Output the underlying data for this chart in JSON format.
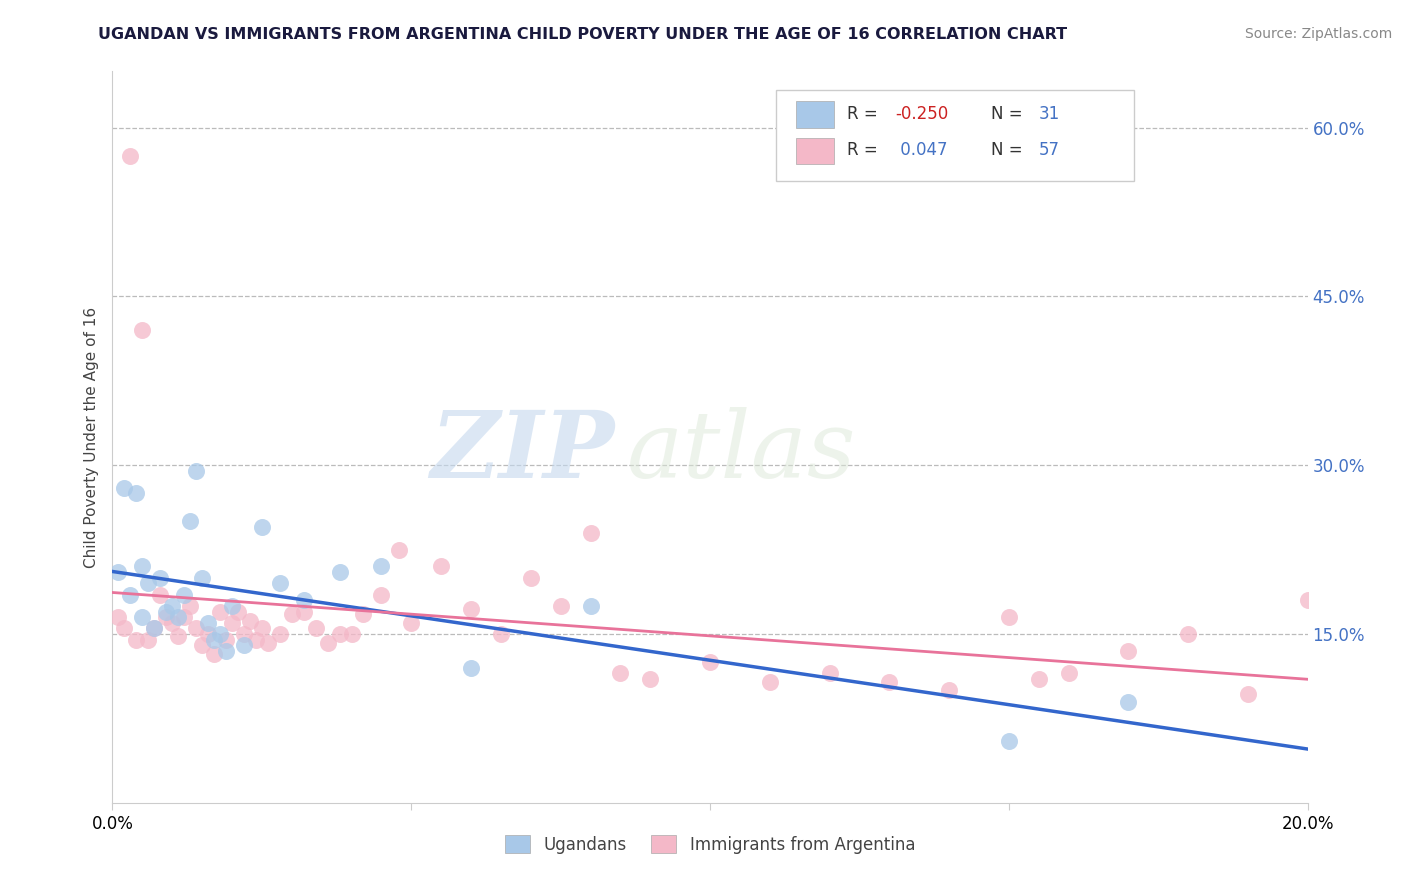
{
  "title": "UGANDAN VS IMMIGRANTS FROM ARGENTINA CHILD POVERTY UNDER THE AGE OF 16 CORRELATION CHART",
  "source": "Source: ZipAtlas.com",
  "ylabel": "Child Poverty Under the Age of 16",
  "xlim": [
    0.0,
    0.2
  ],
  "ylim": [
    0.0,
    0.65
  ],
  "xtick_vals": [
    0.0,
    0.05,
    0.1,
    0.15,
    0.2
  ],
  "xtick_labels": [
    "0.0%",
    "",
    "",
    "",
    "20.0%"
  ],
  "yticks_right": [
    0.15,
    0.3,
    0.45,
    0.6
  ],
  "ytick_labels_right": [
    "15.0%",
    "30.0%",
    "45.0%",
    "60.0%"
  ],
  "blue_color": "#a8c8e8",
  "pink_color": "#f4b8c8",
  "blue_line_color": "#3366cc",
  "pink_line_color": "#e8739a",
  "axis_color": "#4472c4",
  "watermark_zip": "ZIP",
  "watermark_atlas": "atlas",
  "ugandans_x": [
    0.001,
    0.002,
    0.003,
    0.004,
    0.005,
    0.005,
    0.006,
    0.007,
    0.008,
    0.009,
    0.01,
    0.011,
    0.012,
    0.013,
    0.014,
    0.015,
    0.016,
    0.017,
    0.018,
    0.019,
    0.02,
    0.022,
    0.025,
    0.028,
    0.032,
    0.038,
    0.045,
    0.06,
    0.08,
    0.15,
    0.17
  ],
  "ugandans_y": [
    0.205,
    0.28,
    0.185,
    0.275,
    0.21,
    0.165,
    0.195,
    0.155,
    0.2,
    0.17,
    0.175,
    0.165,
    0.185,
    0.25,
    0.295,
    0.2,
    0.16,
    0.145,
    0.15,
    0.135,
    0.175,
    0.14,
    0.245,
    0.195,
    0.18,
    0.205,
    0.21,
    0.12,
    0.175,
    0.055,
    0.09
  ],
  "argentina_x": [
    0.001,
    0.002,
    0.003,
    0.004,
    0.005,
    0.006,
    0.007,
    0.008,
    0.009,
    0.01,
    0.011,
    0.012,
    0.013,
    0.014,
    0.015,
    0.016,
    0.017,
    0.018,
    0.019,
    0.02,
    0.021,
    0.022,
    0.023,
    0.024,
    0.025,
    0.026,
    0.028,
    0.03,
    0.032,
    0.034,
    0.036,
    0.038,
    0.04,
    0.042,
    0.045,
    0.048,
    0.05,
    0.055,
    0.06,
    0.065,
    0.07,
    0.075,
    0.08,
    0.085,
    0.09,
    0.1,
    0.11,
    0.12,
    0.13,
    0.14,
    0.15,
    0.155,
    0.16,
    0.17,
    0.18,
    0.19,
    0.2
  ],
  "argentina_y": [
    0.165,
    0.155,
    0.575,
    0.145,
    0.42,
    0.145,
    0.155,
    0.185,
    0.165,
    0.16,
    0.148,
    0.165,
    0.175,
    0.155,
    0.14,
    0.15,
    0.132,
    0.17,
    0.145,
    0.16,
    0.17,
    0.15,
    0.162,
    0.145,
    0.155,
    0.142,
    0.15,
    0.168,
    0.17,
    0.155,
    0.142,
    0.15,
    0.15,
    0.168,
    0.185,
    0.225,
    0.16,
    0.21,
    0.172,
    0.15,
    0.2,
    0.175,
    0.24,
    0.115,
    0.11,
    0.125,
    0.107,
    0.115,
    0.107,
    0.1,
    0.165,
    0.11,
    0.115,
    0.135,
    0.15,
    0.097,
    0.18
  ]
}
